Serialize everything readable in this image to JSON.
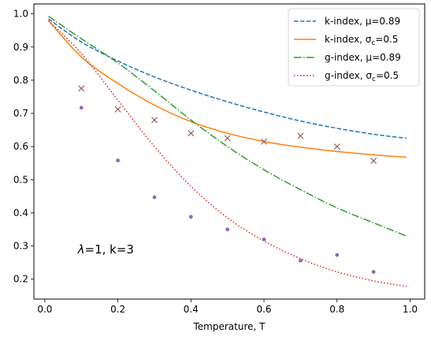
{
  "chart_data": {
    "type": "line",
    "xlabel": "Temperature, T",
    "ylabel": "",
    "xlim": [
      -0.03,
      1.04
    ],
    "ylim": [
      0.14,
      1.03
    ],
    "xticks": [
      0.0,
      0.2,
      0.4,
      0.6,
      0.8,
      1.0
    ],
    "xtick_labels": [
      "0.0",
      "0.2",
      "0.4",
      "0.6",
      "0.8",
      "1.0"
    ],
    "yticks": [
      0.2,
      0.3,
      0.4,
      0.5,
      0.6,
      0.7,
      0.8,
      0.9,
      1.0
    ],
    "ytick_labels": [
      "0.2",
      "0.3",
      "0.4",
      "0.5",
      "0.6",
      "0.7",
      "0.8",
      "0.9",
      "1.0"
    ],
    "grid": false,
    "legend_placement": "top-right",
    "annotation": {
      "prefix": "λ",
      "suffix": "=1, k=3",
      "x": 0.09,
      "y": 0.29
    },
    "series": [
      {
        "name": "k-index, μ=0.89",
        "label_main": "k-index, μ=0.89",
        "label_sub": "",
        "label_tail": "",
        "style": "dashed",
        "color": "#1f77b4",
        "x": [
          0.01,
          0.1,
          0.2,
          0.3,
          0.4,
          0.5,
          0.6,
          0.7,
          0.8,
          0.9,
          0.99
        ],
        "y": [
          0.985,
          0.915,
          0.858,
          0.81,
          0.77,
          0.735,
          0.704,
          0.677,
          0.655,
          0.637,
          0.625
        ]
      },
      {
        "name": "k-index, σc=0.5",
        "label_main": "k-index, σ",
        "label_sub": "c",
        "label_tail": "=0.5",
        "style": "solid",
        "color": "#ff7f0e",
        "x": [
          0.01,
          0.1,
          0.2,
          0.3,
          0.4,
          0.5,
          0.6,
          0.7,
          0.8,
          0.9,
          0.99
        ],
        "y": [
          0.98,
          0.87,
          0.79,
          0.725,
          0.675,
          0.64,
          0.615,
          0.598,
          0.585,
          0.575,
          0.568
        ]
      },
      {
        "name": "g-index, μ=0.89",
        "label_main": "g-index, μ=0.89",
        "label_sub": "",
        "label_tail": "",
        "style": "dashdot",
        "color": "#2ca02c",
        "x": [
          0.01,
          0.1,
          0.2,
          0.3,
          0.4,
          0.5,
          0.6,
          0.7,
          0.8,
          0.9,
          0.99
        ],
        "y": [
          0.993,
          0.925,
          0.852,
          0.768,
          0.68,
          0.6,
          0.53,
          0.47,
          0.415,
          0.37,
          0.33
        ]
      },
      {
        "name": "g-index, σc=0.5",
        "label_main": "g-index, σ",
        "label_sub": "c",
        "label_tail": "=0.5",
        "style": "dotted",
        "color": "#d62728",
        "x": [
          0.01,
          0.1,
          0.2,
          0.3,
          0.4,
          0.5,
          0.6,
          0.7,
          0.8,
          0.9,
          0.99
        ],
        "y": [
          0.98,
          0.88,
          0.74,
          0.6,
          0.48,
          0.385,
          0.315,
          0.262,
          0.222,
          0.195,
          0.178
        ]
      }
    ],
    "scatter_series": [
      {
        "marker": "x",
        "color": "#8c564b",
        "x": [
          0.1,
          0.2,
          0.3,
          0.4,
          0.5,
          0.6,
          0.7,
          0.8,
          0.9
        ],
        "y": [
          0.775,
          0.712,
          0.68,
          0.64,
          0.625,
          0.615,
          0.632,
          0.6,
          0.557
        ]
      },
      {
        "marker": "dot",
        "color": "#9467bd",
        "x": [
          0.1,
          0.2,
          0.3,
          0.4,
          0.5,
          0.6,
          0.7,
          0.8,
          0.9
        ],
        "y": [
          0.717,
          0.558,
          0.447,
          0.388,
          0.35,
          0.32,
          0.256,
          0.273,
          0.222
        ]
      }
    ]
  }
}
